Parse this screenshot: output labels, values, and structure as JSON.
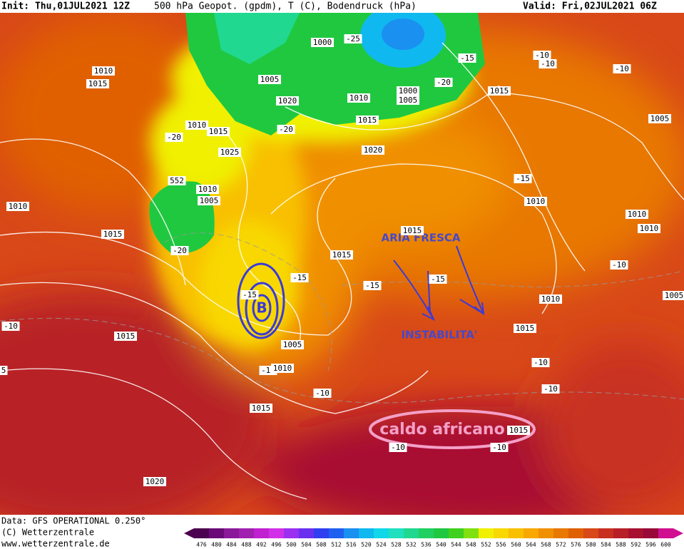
{
  "header": {
    "init": "Init: Thu,01JUL2021 12Z",
    "title": "500 hPa Geopot. (gpdm), T (C), Bodendruck (hPa)",
    "valid": "Valid: Fri,02JUL2021 06Z"
  },
  "footer": {
    "data": "Data: GFS OPERATIONAL 0.250°",
    "copyright": "(C) Wetterzentrale",
    "url": "www.wetterzentrale.de"
  },
  "annotations": {
    "low": "B",
    "cool_air": "ARIA FRESCA",
    "instability": "INSTABILITA'",
    "heat": "caldo africano"
  },
  "isobar_labels": [
    "1010",
    "1015",
    "1000",
    "-25",
    "-15",
    "-10",
    "-10",
    "-10",
    "1005",
    "-20",
    "1015",
    "1020",
    "1010",
    "1000",
    "1005",
    "1005",
    "1010",
    "1015",
    "-20",
    "1015",
    "-20",
    "1025",
    "1020",
    "552",
    "1010",
    "1005",
    "-15",
    "1010",
    "1010",
    "1010",
    "1015",
    "1015",
    "1010",
    "-20",
    "1015",
    "-10",
    "-15",
    "-15",
    "-15",
    "-15",
    "1005",
    "1010",
    "-10",
    "1015",
    "1015",
    "1005",
    "-10",
    "1010",
    "-10",
    "-10",
    "-10",
    "1015",
    "1015",
    "-10",
    "-10",
    "1020",
    "5"
  ],
  "colorbar": {
    "values": [
      476,
      480,
      484,
      488,
      492,
      496,
      500,
      504,
      508,
      512,
      516,
      520,
      524,
      528,
      532,
      536,
      540,
      544,
      548,
      552,
      556,
      560,
      564,
      568,
      572,
      576,
      580,
      584,
      588,
      592,
      596,
      600
    ],
    "colors": [
      "#4b0050",
      "#6a0a78",
      "#8b1a9a",
      "#a020b0",
      "#c020d0",
      "#d030e8",
      "#9a30f0",
      "#6a30f0",
      "#3040f0",
      "#2060f0",
      "#1a90f0",
      "#10b8f0",
      "#10d8e8",
      "#20e0c0",
      "#20d890",
      "#20d060",
      "#20c840",
      "#40d020",
      "#80e010",
      "#f0f000",
      "#f8d800",
      "#f8c000",
      "#f8a800",
      "#f09000",
      "#e87800",
      "#e06000",
      "#d84818",
      "#c83020",
      "#b82028",
      "#a81030",
      "#980838",
      "#d01090"
    ]
  }
}
